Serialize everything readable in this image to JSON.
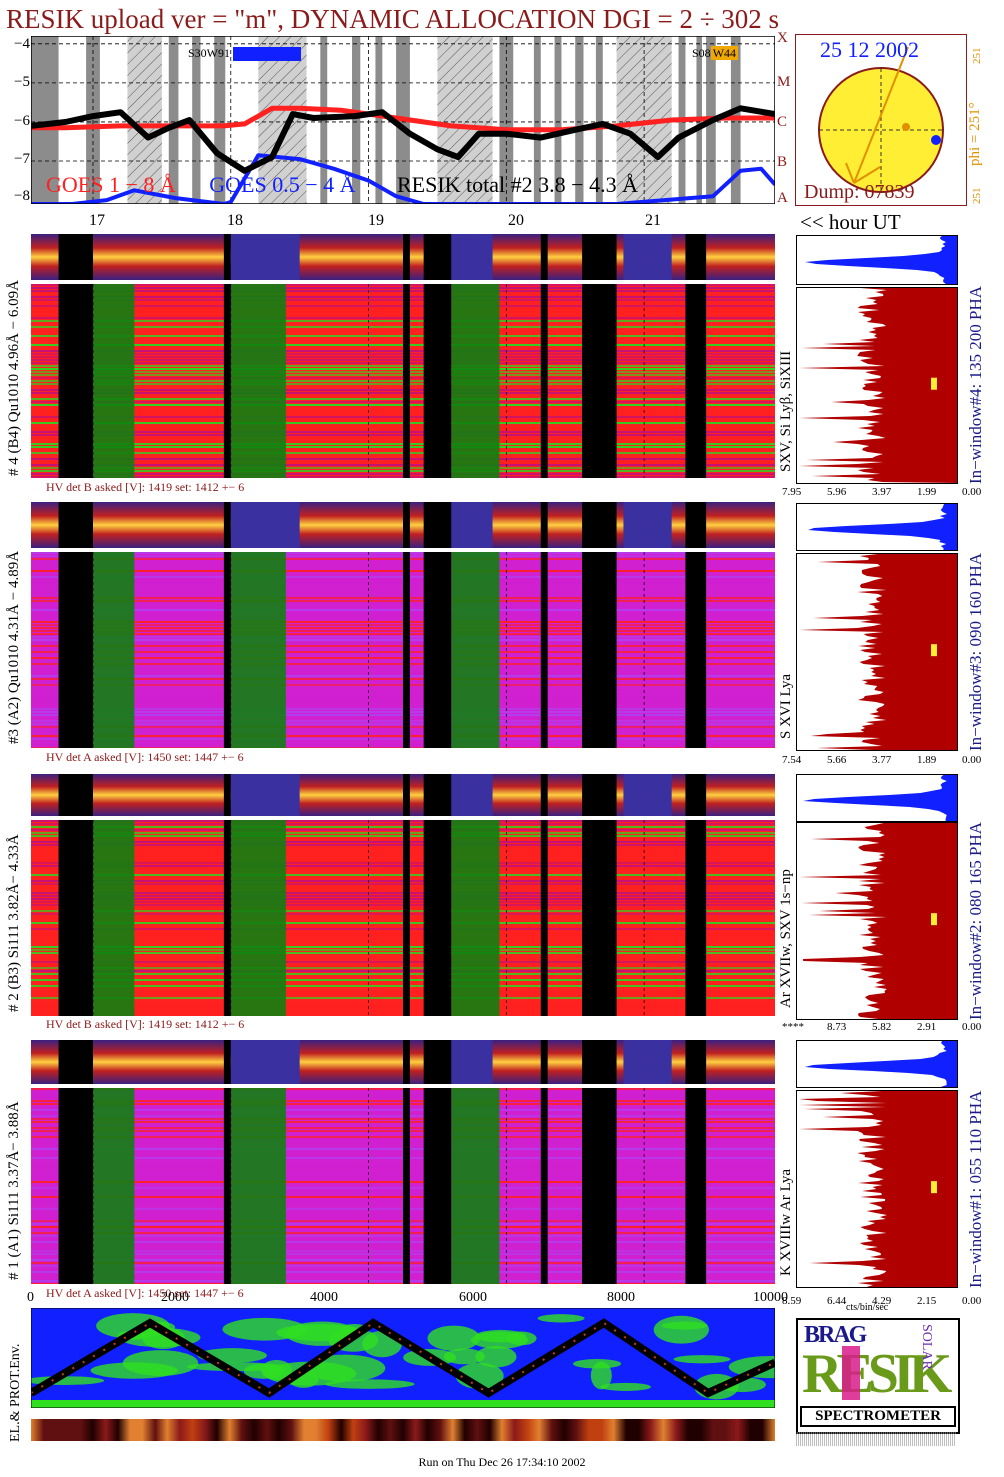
{
  "header": {
    "title": "RESIK upload ver = \"m\", DYNAMIC ALLOCATION  DGI =   2 ÷ 302 s"
  },
  "goes_plot": {
    "y_ticks": [
      "−4",
      "−5",
      "−6",
      "−7",
      "−8"
    ],
    "class_scale": [
      "X",
      "M",
      "C",
      "B",
      "A"
    ],
    "legend_goes_long": "GOES 1 − 8 Å",
    "legend_goes_short": "GOES 0.5 − 4 Å",
    "legend_resik": "RESIK total #2 3.8 − 4.3 Å",
    "marker_left": "S30W91",
    "marker_right_prefix": "S08",
    "marker_right_badge": "W44",
    "colors": {
      "goes_long": "#ff2020",
      "goes_short": "#1020ff",
      "resik": "#000000",
      "badge": "#f0a800"
    }
  },
  "sun_disk": {
    "date": "25 12 2002",
    "dump": "Dump: 07839",
    "phi_label": "phi = 251°",
    "phi_top": "251",
    "phi_bottom": "251"
  },
  "hours": {
    "labels": [
      "17",
      "18",
      "19",
      "20",
      "21"
    ],
    "axis_title": "<< hour UT"
  },
  "channels": [
    {
      "id": "4",
      "left_label": "# 4 (B4) Qu1010 4.96Å − 6.09Å",
      "hv_note": "HV det B asked [V]:  1419 set:  1412 +−    6",
      "lines": "SXV, Si Lyβ, SiXIII",
      "window": "In−window#4:  135 200 PHA",
      "pha_ticks": [
        "7.95",
        "5.96",
        "3.97",
        "1.99",
        "0.00"
      ],
      "theme": "green"
    },
    {
      "id": "3",
      "left_label": "#3 (A2) Qu1010  4.31Å − 4.89Å",
      "hv_note": "HV det A asked [V]:  1450 set:  1447 +−    6",
      "lines": "S XVI Lya",
      "window": "In−window#3:  090 160 PHA",
      "pha_ticks": [
        "7.54",
        "5.66",
        "3.77",
        "1.89",
        "0.00"
      ],
      "theme": "magenta"
    },
    {
      "id": "2",
      "left_label": "# 2 (B3) Si111  3.82Å− 4.33Å",
      "hv_note": "HV det B asked [V]:  1419 set:  1412 +−    6",
      "lines": "Ar XVIIw,  SXV 1s−np",
      "window": "In−window#2:  080 165 PHA",
      "pha_ticks": [
        "****",
        "8.73",
        "5.82",
        "2.91",
        "0.00"
      ],
      "theme": "green"
    },
    {
      "id": "1",
      "left_label": "# 1 (A1) Si111  3.37Å− 3.88Å",
      "hv_note": "HV det A asked [V]:  1450 set:  1447 +−    6",
      "lines": "K XVIIIw  Ar Lya",
      "window": "In−window#1:  055 110 PHA",
      "pha_ticks": [
        "8.59",
        "6.44",
        "4.29",
        "2.15",
        "0.00"
      ],
      "theme": "magenta"
    }
  ],
  "pha_unit": "cts/bin/sec",
  "env": {
    "label": "EL.& PROT.Env.",
    "x_ticks": [
      "0",
      "2000",
      "4000",
      "6000",
      "8000",
      "10000"
    ]
  },
  "logo": {
    "top_letters": "BRAG",
    "main": "RESIK",
    "side": "SOLAR",
    "bottom": "SPECTROMETER"
  },
  "footer": "Run on Thu Dec 26 17:34:10 2002",
  "chart_data": [
    {
      "type": "line",
      "title": "RESIK upload ver = \"m\", DYNAMIC ALLOCATION  DGI =   2 ÷ 302 s",
      "xlabel": "hour UT",
      "ylabel": "",
      "xlim": [
        16.55,
        21.95
      ],
      "ylim": [
        -8.1,
        -3.8
      ],
      "x_ticks": [
        17,
        18,
        19,
        20,
        21
      ],
      "y_scale": "log10 flux",
      "series": [
        {
          "name": "GOES 1 − 8 Å",
          "color": "#ff2020",
          "x": [
            16.55,
            16.8,
            17.2,
            17.6,
            17.95,
            18.1,
            18.3,
            18.5,
            18.8,
            19.2,
            19.6,
            20.0,
            20.4,
            20.8,
            21.2,
            21.6,
            21.95
          ],
          "y": [
            -6.15,
            -6.15,
            -6.1,
            -6.1,
            -6.1,
            -6.05,
            -5.65,
            -5.65,
            -5.7,
            -5.9,
            -6.1,
            -6.2,
            -6.2,
            -6.1,
            -5.95,
            -5.9,
            -5.9
          ]
        },
        {
          "name": "GOES 0.5 − 4 Å",
          "color": "#1020ff",
          "x": [
            16.55,
            16.85,
            17.1,
            17.3,
            17.6,
            17.95,
            18.0,
            18.2,
            18.5,
            18.75,
            19.0,
            19.2,
            19.4,
            20.0,
            20.8,
            21.5,
            21.7,
            21.85,
            21.95
          ],
          "y": [
            -8.1,
            -8.1,
            -8.0,
            -7.75,
            -7.95,
            -8.1,
            -8.05,
            -6.85,
            -6.95,
            -7.2,
            -7.5,
            -7.9,
            -8.1,
            -8.1,
            -8.1,
            -7.9,
            -7.25,
            -7.2,
            -7.6
          ]
        },
        {
          "name": "RESIK total #2 3.8 − 4.3 Å",
          "color": "#000000",
          "x": [
            16.55,
            16.8,
            17.0,
            17.2,
            17.4,
            17.55,
            17.7,
            17.9,
            18.1,
            18.3,
            18.45,
            18.6,
            18.9,
            19.1,
            19.3,
            19.5,
            19.65,
            19.8,
            20.0,
            20.25,
            20.5,
            20.7,
            20.9,
            21.1,
            21.25,
            21.5,
            21.7,
            21.95
          ],
          "y": [
            -6.1,
            -6.0,
            -5.85,
            -5.75,
            -6.4,
            -6.15,
            -5.95,
            -6.8,
            -7.25,
            -6.9,
            -5.8,
            -5.9,
            -5.85,
            -5.75,
            -6.3,
            -6.7,
            -6.9,
            -6.3,
            -6.3,
            -6.4,
            -6.2,
            -6.05,
            -6.3,
            -6.9,
            -6.4,
            -5.95,
            -5.65,
            -5.8
          ]
        }
      ]
    },
    {
      "type": "heatmap",
      "title": "",
      "x": "time 16.55 − 21.95 h UT",
      "rows": [
        "channel #4",
        "channel #3",
        "channel #2",
        "channel #1"
      ],
      "data_gaps_hour": [
        [
          16.75,
          17.0
        ],
        [
          17.95,
          18.0
        ],
        [
          19.25,
          19.3
        ],
        [
          19.4,
          19.6
        ],
        [
          20.25,
          20.3
        ],
        [
          20.55,
          20.8
        ],
        [
          21.3,
          21.45
        ]
      ]
    },
    {
      "type": "line",
      "title": "",
      "xlabel": "",
      "ylabel": "EL.& PROT.Env.",
      "x_ticks": [
        0,
        2000,
        4000,
        6000,
        8000,
        10000
      ],
      "xlim": [
        0,
        10000
      ],
      "ylim": [
        0,
        1
      ],
      "series": [
        {
          "name": "",
          "color": "#000000",
          "x": [
            0,
            1600,
            3200,
            4600,
            6150,
            7700,
            9100,
            10000
          ],
          "y": [
            0.12,
            0.88,
            0.12,
            0.88,
            0.12,
            0.88,
            0.12,
            0.45
          ]
        }
      ]
    }
  ]
}
